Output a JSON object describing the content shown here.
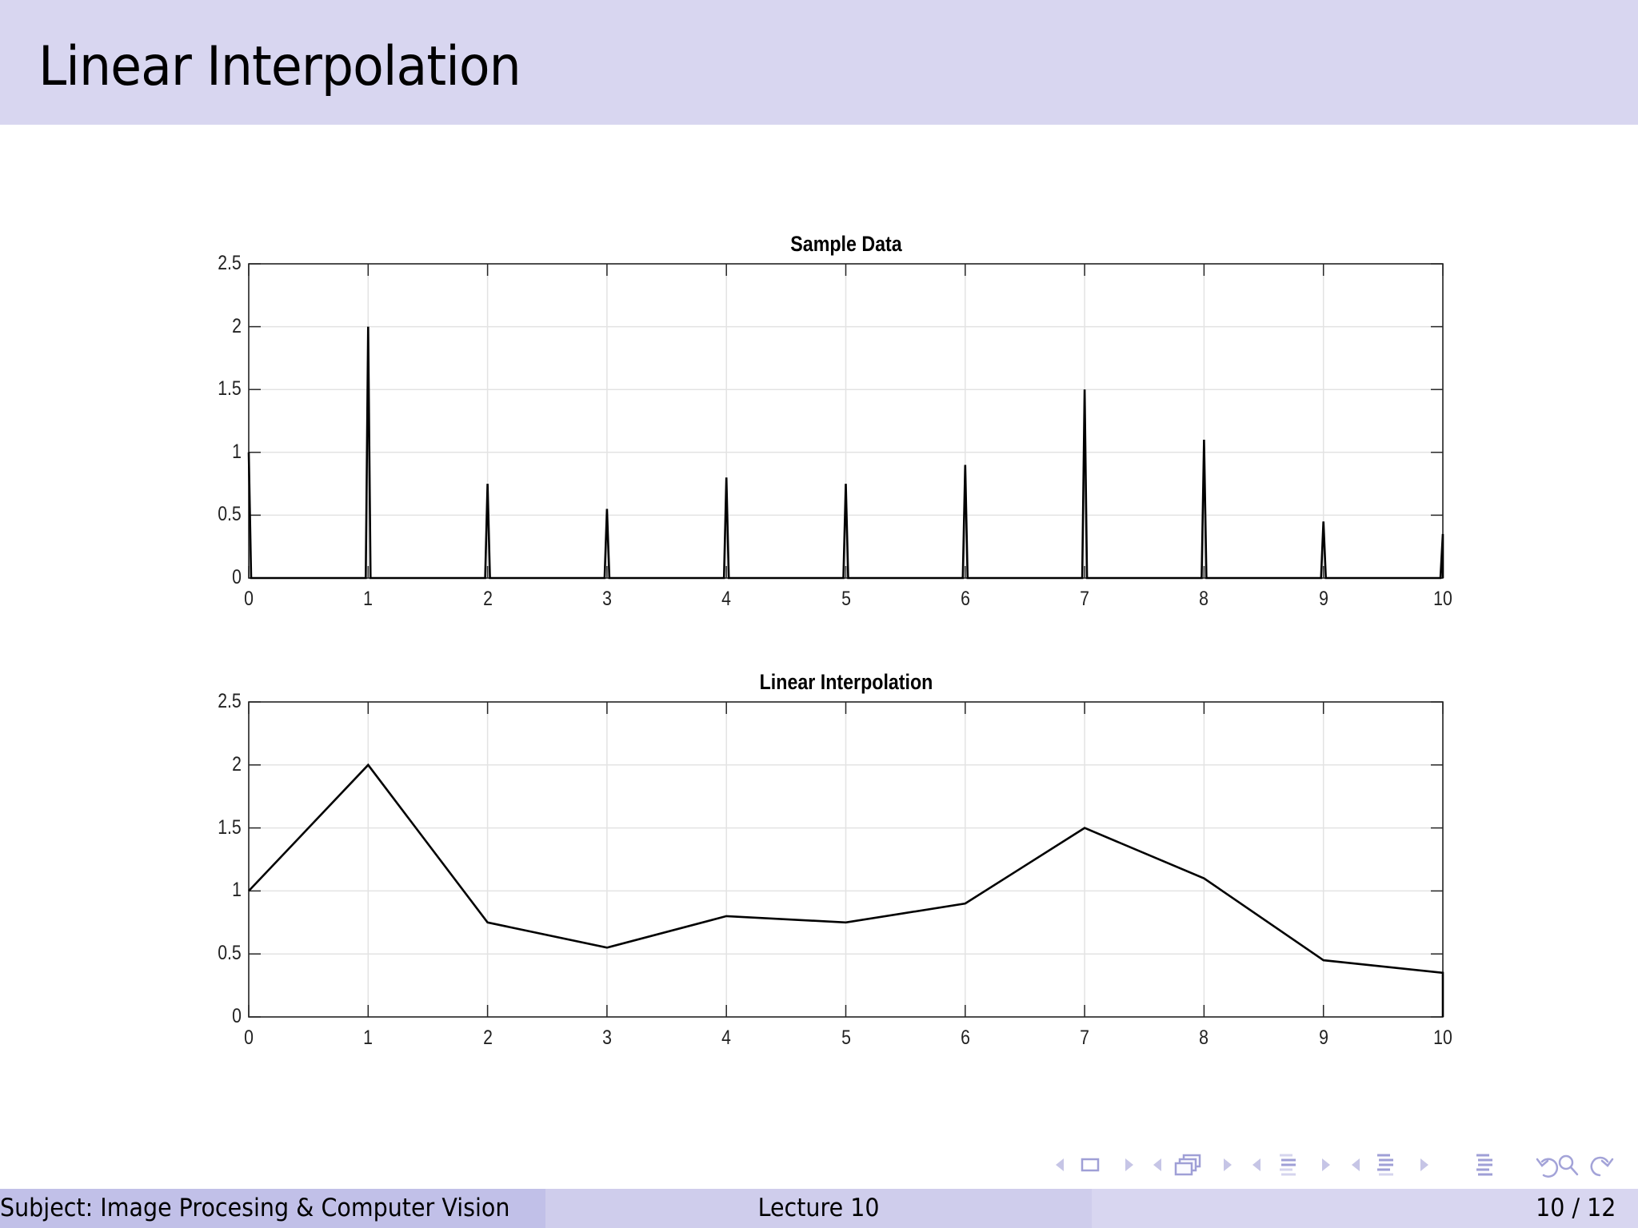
{
  "slide": {
    "title": "Linear Interpolation"
  },
  "footer": {
    "subject": "Subject: Image Procesing & Computer Vision",
    "lecture": "Lecture 10",
    "page": "10 / 12"
  },
  "nav": {
    "icons": [
      "arrow-left-icon",
      "frame-icon",
      "arrow-right-icon",
      "arrow-left-icon",
      "subsection-icon",
      "arrow-right-icon",
      "arrow-left-icon",
      "section-icon",
      "arrow-right-icon",
      "arrow-left-icon",
      "subsection-list-icon",
      "arrow-right-icon",
      "toc-icon",
      "undo-icon",
      "search-icon",
      "redo-icon"
    ],
    "color": "#9f9fd6"
  },
  "colors": {
    "header_bg": "#d8d6f0",
    "footer_left_bg": "#c1c0e8",
    "footer_mid_bg": "#cfcdec",
    "footer_right_bg": "#d8d6f0",
    "grid": "#e3e3e3",
    "axis": "#262626",
    "line": "#000000"
  },
  "chart_data": [
    {
      "type": "bar",
      "style": "stem-spikes",
      "title": "Sample Data",
      "xlabel": "",
      "ylabel": "",
      "x": [
        0,
        1,
        2,
        3,
        4,
        5,
        6,
        7,
        8,
        9,
        10
      ],
      "values": [
        1,
        2,
        0.75,
        0.55,
        0.8,
        0.75,
        0.9,
        1.5,
        1.1,
        0.45,
        0.35
      ],
      "xlim": [
        0,
        10
      ],
      "ylim": [
        0,
        2.5
      ],
      "xticks": [
        "0",
        "1",
        "2",
        "3",
        "4",
        "5",
        "6",
        "7",
        "8",
        "9",
        "10"
      ],
      "yticks": [
        "0",
        "0.5",
        "1",
        "1.5",
        "2",
        "2.5"
      ],
      "grid": true,
      "legend": null
    },
    {
      "type": "line",
      "title": "Linear Interpolation",
      "xlabel": "",
      "ylabel": "",
      "x": [
        0,
        1,
        2,
        3,
        4,
        5,
        6,
        7,
        8,
        9,
        10
      ],
      "values": [
        1,
        2,
        0.75,
        0.55,
        0.8,
        0.75,
        0.9,
        1.5,
        1.1,
        0.45,
        0.35
      ],
      "end_drop_to_zero": true,
      "xlim": [
        0,
        10
      ],
      "ylim": [
        0,
        2.5
      ],
      "xticks": [
        "0",
        "1",
        "2",
        "3",
        "4",
        "5",
        "6",
        "7",
        "8",
        "9",
        "10"
      ],
      "yticks": [
        "0",
        "0.5",
        "1",
        "1.5",
        "2",
        "2.5"
      ],
      "grid": true,
      "legend": null
    }
  ]
}
